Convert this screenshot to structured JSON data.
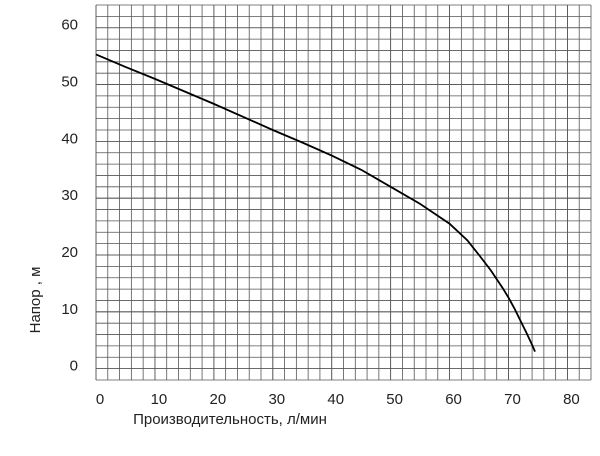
{
  "chart_data": {
    "type": "line",
    "x_label": "Производительность, л/мин",
    "y_label": "Напор , м",
    "x": [
      0,
      5,
      10,
      15,
      20,
      25,
      30,
      35,
      40,
      45,
      50,
      55,
      60,
      63,
      65,
      67,
      69,
      70,
      71,
      72,
      73,
      74,
      74.5
    ],
    "series": [
      {
        "color": "#000000",
        "values": [
          55.3,
          53.1,
          51,
          48.8,
          46.6,
          44.3,
          42,
          39.8,
          37.5,
          35,
          32,
          29,
          25.5,
          22.6,
          20,
          17.3,
          14.2,
          12.5,
          10.6,
          8.5,
          6.4,
          4.2,
          3
        ]
      }
    ],
    "xlim": [
      0,
      84
    ],
    "xticks": [
      0,
      10,
      20,
      30,
      40,
      50,
      60,
      70,
      80
    ],
    "ylim": [
      -2,
      64
    ],
    "yticks": [
      0,
      10,
      20,
      30,
      40,
      50,
      60
    ],
    "grid": true,
    "grid_step": 2
  }
}
